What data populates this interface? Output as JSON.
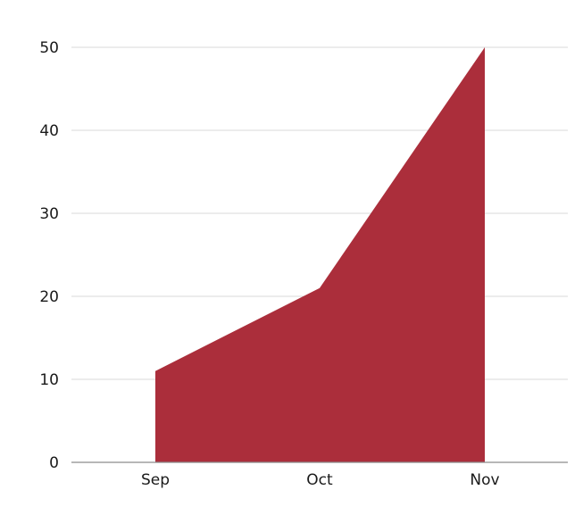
{
  "chart_data": {
    "type": "area",
    "categories": [
      "Sep",
      "Oct",
      "Nov"
    ],
    "series": [
      {
        "values": [
          11,
          21,
          50
        ]
      }
    ],
    "ylim": [
      0,
      50
    ],
    "yticks": [
      0,
      10,
      20,
      30,
      40,
      50
    ],
    "ytick_labels": [
      "0",
      "10",
      "20",
      "30",
      "40",
      "50"
    ],
    "grid": true,
    "legend": "none",
    "colors": {
      "area": "#ab2e3b",
      "grid": "#d9d9d9",
      "axis": "#8c8c8c",
      "text": "#1a1a1a"
    }
  }
}
